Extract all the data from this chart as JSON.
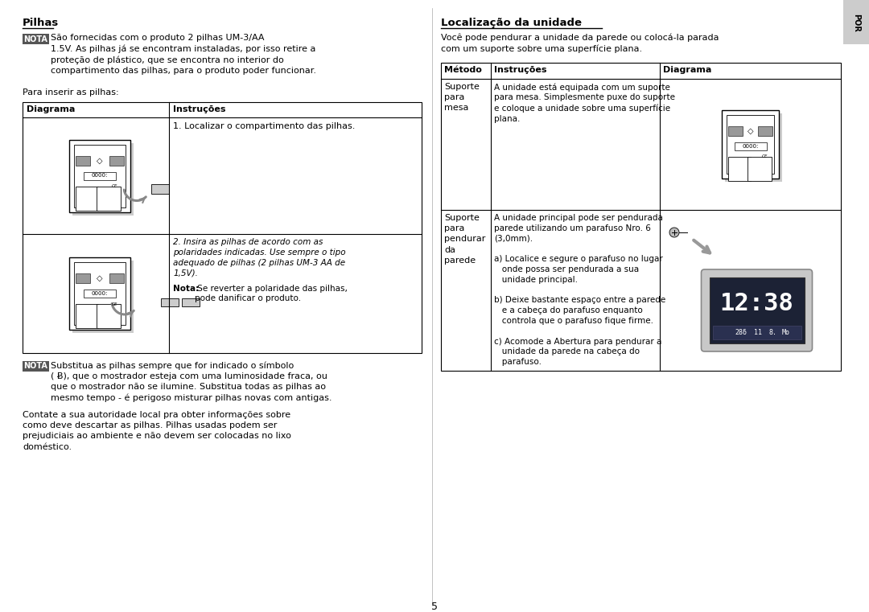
{
  "bg_color": "#ffffff",
  "page_number": "5",
  "por_label": "POR",
  "left": {
    "title": "Pilhas",
    "nota1_text": "São fornecidas com o produto 2 pilhas UM-3/AA\n1.5V. As pilhas já se encontram instaladas, por isso retire a\nproteção de plástico, que se encontra no interior do\ncompartimento das pilhas, para o produto poder funcionar.",
    "para_inserir": "Para inserir as pilhas:",
    "tbl_h1": "Diagrama",
    "tbl_h2": "Instruções",
    "row1_instr": "1. Localizar o compartimento das pilhas.",
    "row2_instr": "2. Insira as pilhas de acordo com as\npolaridades indicadas. Use sempre o tipo\nadequado de pilhas (2 pilhas UM-3 AA de\n1,5V).",
    "nota_bold": "Nota:",
    "nota_text": " Se reverter a polaridade das pilhas,\npode danificar o produto.",
    "nota2_text": "Substitua as pilhas sempre que for indicado o símbolo\n( Ƀ), que o mostrador esteja com uma luminosidade fraca, ou\nque o mostrador não se ilumine. Substitua todas as pilhas ao\nmesmo tempo - é perigoso misturar pilhas novas com antigas.",
    "para3": "Contate a sua autoridade local pra obter informações sobre\ncomo deve descartar as pilhas. Pilhas usadas podem ser\nprejudiciais ao ambiente e não devem ser colocadas no lixo\ndoméstico."
  },
  "right": {
    "title": "Localização da unidade",
    "intro": "Você pode pendurar a unidade da parede ou colocá-la parada\ncom um suporte sobre uma superfície plana.",
    "tbl_h1": "Método",
    "tbl_h2": "Instruções",
    "tbl_h3": "Diagrama",
    "r1_metodo": "Suporte\npara\nmesa",
    "r1_instr": "A unidade está equipada com um suporte\npara mesa. Simplesmente puxe do suporte\ne coloque a unidade sobre uma superfície\nplana.",
    "r2_metodo": "Suporte\npara\npendurar\nda\nparede",
    "r2_instr": "A unidade principal pode ser pendurada\nparede utilizando um parafuso Nro. 6\n(3,0mm).\n\na) Localice e segure o parafuso no lugar\n   onde possa ser pendurada a sua\n   unidade principal.\n\nb) Deixe bastante espaço entre a parede\n   e a cabeça do parafuso enquanto\n   controla que o parafuso fique firme.\n\nc) Acomode a Abertura para pendurar a\n   unidade da parede na cabeça do\n   parafuso."
  }
}
